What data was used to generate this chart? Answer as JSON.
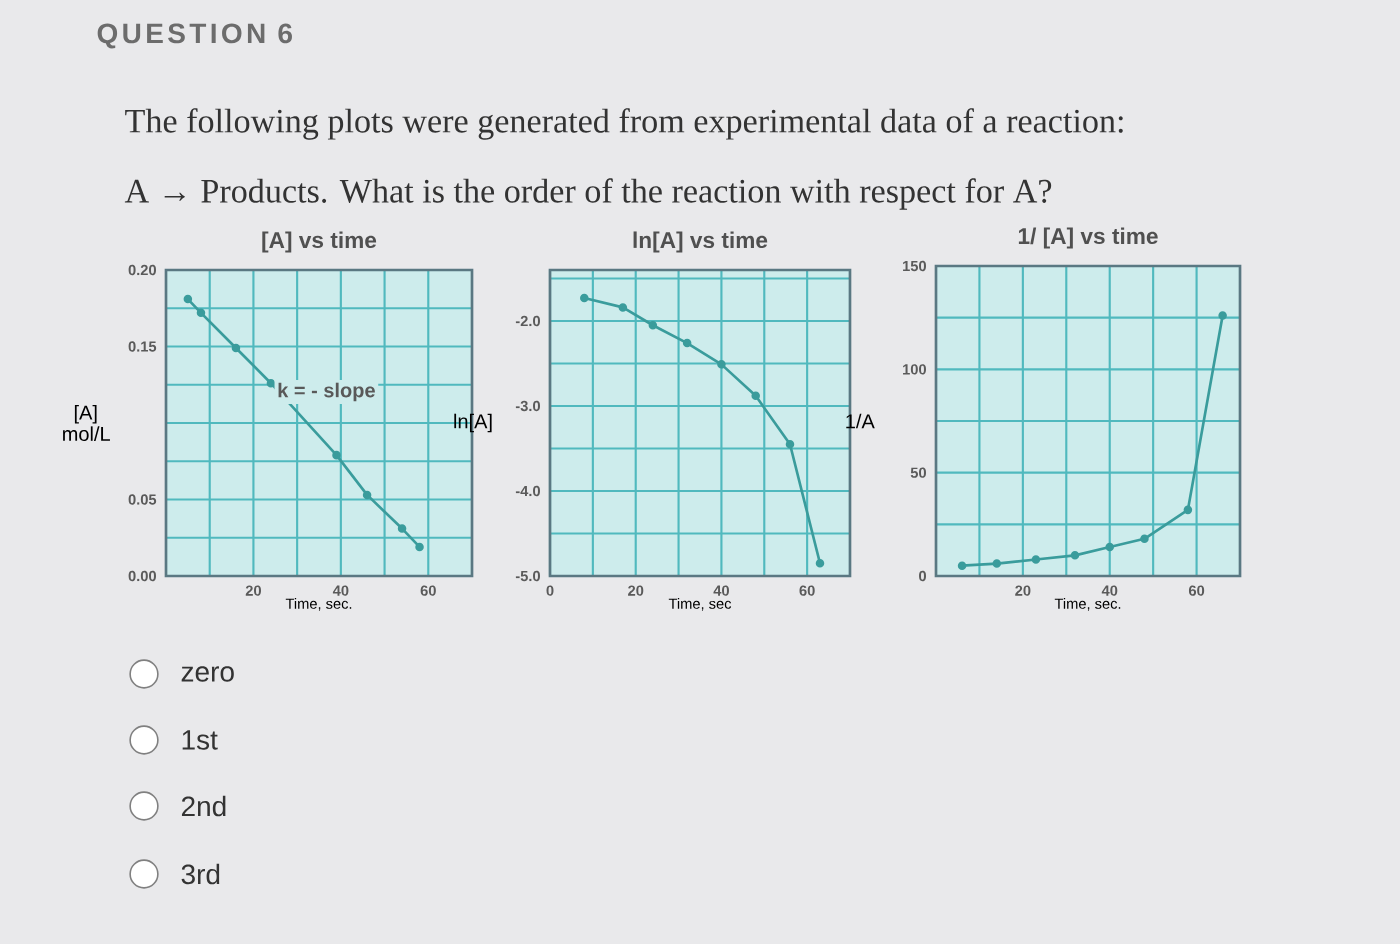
{
  "chart_data": [
    {
      "type": "line",
      "title": "[A] vs time",
      "xlabel": "Time, sec.",
      "ylabel": "[A] mol/L",
      "x": [
        5,
        8,
        16,
        24,
        39,
        46,
        54,
        58
      ],
      "values": [
        0.181,
        0.172,
        0.149,
        0.126,
        0.079,
        0.053,
        0.031,
        0.019
      ],
      "color": "#3a9c9c",
      "marker": "circle",
      "grid": true,
      "xlim": [
        0,
        70
      ],
      "xticks": [
        {
          "value": 10,
          "label": null
        },
        20,
        {
          "value": 30,
          "label": null
        },
        40,
        {
          "value": 50,
          "label": null
        },
        60
      ],
      "ylim": [
        0,
        0.2
      ],
      "yticks": [
        {
          "value": 0,
          "label": "0.00"
        },
        {
          "value": 0.025,
          "label": null
        },
        {
          "value": 0.05,
          "label": "0.05"
        },
        {
          "value": 0.075,
          "label": null
        },
        {
          "value": 0.1,
          "label": null
        },
        {
          "value": 0.125,
          "label": null
        },
        {
          "value": 0.15,
          "label": "0.15"
        },
        {
          "value": 0.175,
          "label": null
        },
        {
          "value": 0.2,
          "label": "0.20"
        }
      ],
      "annotations": [
        "QUESTION 6",
        "The following plots were generated from experimental data of a reaction:",
        "A → Products.  What is the order of the reaction with respect for A?",
        "zero",
        "1st",
        "2nd",
        "3rd",
        "k = - slope"
      ]
    },
    {
      "type": "line",
      "title": "ln[A] vs time",
      "xlabel": "Time, sec",
      "ylabel": "ln[A]",
      "x": [
        8,
        17,
        24,
        32,
        40,
        48,
        56,
        63
      ],
      "values": [
        -1.73,
        -1.84,
        -2.05,
        -2.26,
        -2.51,
        -2.88,
        -3.45,
        -4.85
      ],
      "color": "#3a9c9c",
      "marker": "circle",
      "grid": true,
      "xlim": [
        0,
        70
      ],
      "xticks": [
        0,
        {
          "value": 10,
          "label": null
        },
        20,
        {
          "value": 30,
          "label": null
        },
        40,
        {
          "value": 50,
          "label": null
        },
        60
      ],
      "ylim": [
        -5.0,
        -1.4
      ],
      "yticks": [
        {
          "value": -5,
          "label": "-5.0"
        },
        {
          "value": -4.5,
          "label": null
        },
        {
          "value": -4,
          "label": "-4.0"
        },
        {
          "value": -3.5,
          "label": null
        },
        {
          "value": -3,
          "label": "-3.0"
        },
        {
          "value": -2.5,
          "label": null
        },
        {
          "value": -2,
          "label": "-2.0"
        },
        {
          "value": -1.5,
          "label": null
        }
      ]
    },
    {
      "type": "line",
      "title": "1/ [A] vs time",
      "xlabel": "Time, sec.",
      "ylabel": "1/A",
      "x": [
        6,
        14,
        23,
        32,
        40,
        48,
        58,
        66
      ],
      "values": [
        5,
        6,
        8,
        10,
        14,
        18,
        32,
        126
      ],
      "color": "#3a9c9c",
      "marker": "circle",
      "grid": true,
      "xlim": [
        0,
        70
      ],
      "xticks": [
        {
          "value": 10,
          "label": null
        },
        20,
        {
          "value": 30,
          "label": null
        },
        40,
        {
          "value": 50,
          "label": null
        },
        60
      ],
      "ylim": [
        0,
        150
      ],
      "yticks": [
        0,
        {
          "value": 25,
          "label": null
        },
        50,
        {
          "value": 75,
          "label": null
        },
        100,
        {
          "value": 125,
          "label": null
        },
        150
      ]
    }
  ]
}
